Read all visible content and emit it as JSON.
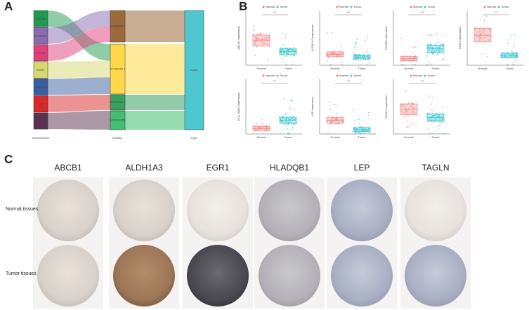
{
  "panel_labels": [
    "A",
    "B",
    "C"
  ],
  "panel_a": {
    "immune_genes": [
      "ABCB1",
      "ALDH1A3",
      "CXCR4",
      "EGR1",
      "HLADQB1",
      "LEP",
      "TAGLN"
    ],
    "lncrnas": [
      "AC008060.1",
      "AC784051.1",
      "AC010491.1",
      "LINC01235"
    ],
    "type": [
      "tumor"
    ],
    "axis_labels": [
      "ImmuneGene",
      "lncRNA",
      "Type"
    ]
  },
  "panel_b": {
    "legend": [
      "Normal",
      "Tumor"
    ],
    "plots": [
      {
        "y_label": "ABCB1 expression",
        "significance": "***"
      },
      {
        "y_label": "ALDH1A3 expression",
        "significance": "***"
      },
      {
        "y_label": "CXCR4 expression",
        "significance": "***"
      },
      {
        "y_label": "EGR1 expression",
        "significance": "***"
      },
      {
        "y_label": "HLA-DQB1 expression",
        "significance": "***"
      },
      {
        "y_label": "LEP expression",
        "significance": "***"
      },
      {
        "y_label": "TAGLN expression",
        "significance": "***"
      }
    ]
  },
  "panel_c": {
    "genes": [
      "ABCB1",
      "ALDH1A3",
      "EGR1",
      "HLADQB1",
      "LEP",
      "TAGLN"
    ],
    "rows": [
      "Normal tissues",
      "Tumor tissues"
    ]
  }
}
